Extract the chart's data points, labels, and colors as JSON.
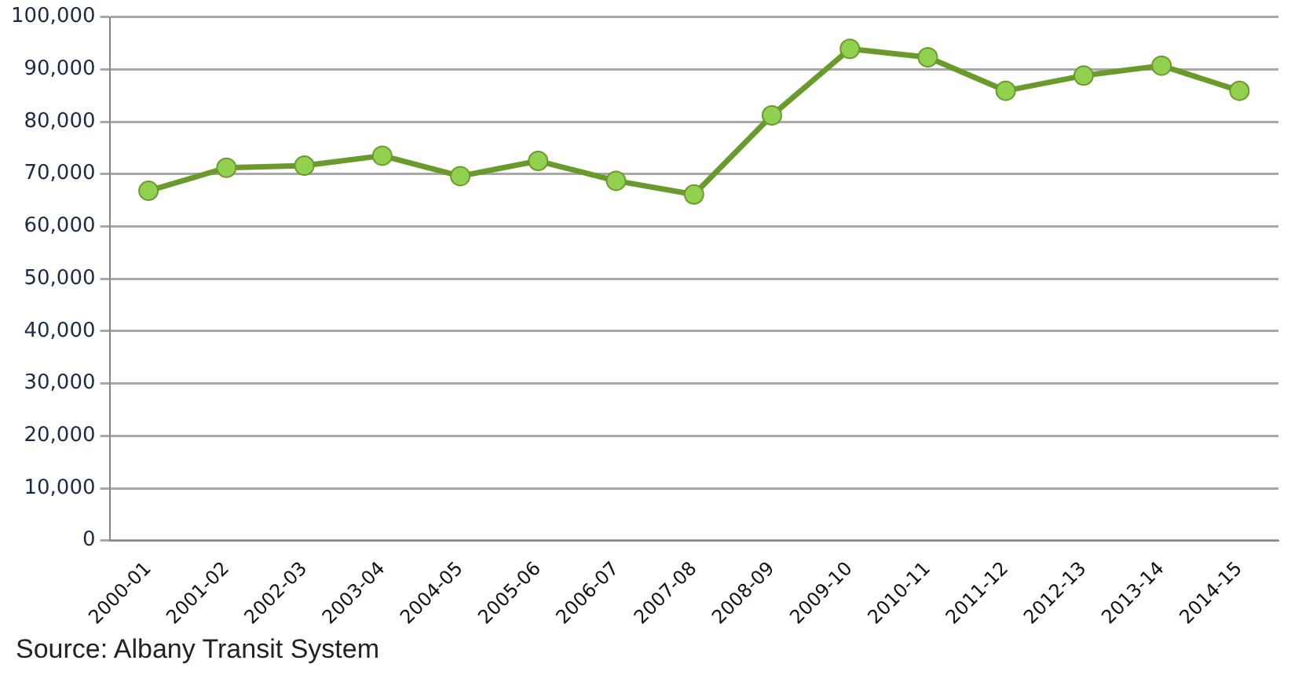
{
  "chart_data": {
    "type": "line",
    "categories": [
      "2000-01",
      "2001-02",
      "2002-03",
      "2003-04",
      "2004-05",
      "2005-06",
      "2006-07",
      "2007-08",
      "2008-09",
      "2009-10",
      "2010-11",
      "2011-12",
      "2012-13",
      "2013-14",
      "2014-15"
    ],
    "series": [
      {
        "color": "#6b9a2c",
        "values": [
          66800,
          71200,
          71600,
          73500,
          69600,
          72500,
          68700,
          66100,
          81200,
          93900,
          92300,
          85900,
          88800,
          90700,
          85900
        ]
      }
    ],
    "ylim": [
      0,
      100000
    ],
    "yticks": [
      {
        "value": 0,
        "label": "0"
      },
      {
        "value": 10000,
        "label": "10,000"
      },
      {
        "value": 20000,
        "label": "20,000"
      },
      {
        "value": 30000,
        "label": "30,000"
      },
      {
        "value": 40000,
        "label": "40,000"
      },
      {
        "value": 50000,
        "label": "50,000"
      },
      {
        "value": 60000,
        "label": "60,000"
      },
      {
        "value": 70000,
        "label": "70,000"
      },
      {
        "value": 80000,
        "label": "80,000"
      },
      {
        "value": 90000,
        "label": "90,000"
      },
      {
        "value": 100000,
        "label": "100,000"
      }
    ],
    "grid": "y",
    "legend": false,
    "marker": "circle",
    "line_style": "solid",
    "annotations": [
      "Source: Albany Transit System"
    ]
  }
}
